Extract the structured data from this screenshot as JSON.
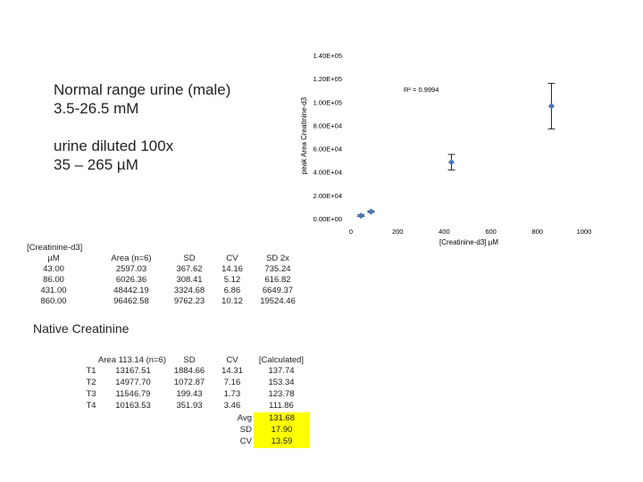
{
  "notes": {
    "line1": "Normal range urine (male)",
    "line2": "3.5-26.5 mM",
    "line3": "urine diluted 100x",
    "line4": "35 – 265 µM"
  },
  "chart_data": {
    "type": "scatter",
    "title": "",
    "xlabel": "[Creatinine-d3] µM",
    "ylabel": "peak Area Creatinine-d3",
    "xlim": [
      0,
      1000
    ],
    "ylim": [
      0,
      140000
    ],
    "x_ticks": [
      "0",
      "200",
      "400",
      "600",
      "800",
      "1000"
    ],
    "y_ticks": [
      "0.00E+00",
      "2.00E+04",
      "4.00E+04",
      "6.00E+04",
      "8.00E+04",
      "1.00E+05",
      "1.20E+05",
      "1.40E+05"
    ],
    "annotation": "R² = 0.9994",
    "marker_color": "#4a76b6",
    "series": [
      {
        "name": "Creatinine-d3",
        "x": [
          43,
          86,
          431,
          860
        ],
        "y": [
          2597.03,
          6026.36,
          48442.19,
          96462.58
        ],
        "error": [
          735.24,
          616.82,
          6649.37,
          19524.46
        ]
      }
    ]
  },
  "table1": {
    "headers": [
      "[Creatinine-d3]\nµM",
      "Area (n=6)",
      "SD",
      "CV",
      "SD 2x"
    ],
    "rows": [
      [
        "43.00",
        "2597.03",
        "367.62",
        "14.16",
        "735.24"
      ],
      [
        "86.00",
        "6026.36",
        "308.41",
        "5.12",
        "616.82"
      ],
      [
        "431.00",
        "48442.19",
        "3324.68",
        "6.86",
        "6649.37"
      ],
      [
        "860.00",
        "96462.58",
        "9762.23",
        "10.12",
        "19524.46"
      ]
    ]
  },
  "section_title": "Native Creatinine",
  "table2": {
    "headers": [
      "Area 113.14 (n=6)",
      "SD",
      "CV",
      "[Calculated]"
    ],
    "rows": [
      [
        "T1",
        "13167.51",
        "1884.66",
        "14.31",
        "137.74"
      ],
      [
        "T2",
        "14977.70",
        "1072.87",
        "7.16",
        "153.34"
      ],
      [
        "T3",
        "11546.79",
        "199.43",
        "1.73",
        "123.78"
      ],
      [
        "T4",
        "10163.53",
        "351.93",
        "3.46",
        "111.86"
      ]
    ],
    "summary": [
      {
        "label": "Avg",
        "value": "131.68"
      },
      {
        "label": "SD",
        "value": "17.90"
      },
      {
        "label": "CV",
        "value": "13.59"
      }
    ],
    "highlight_color": "#ffff00"
  }
}
